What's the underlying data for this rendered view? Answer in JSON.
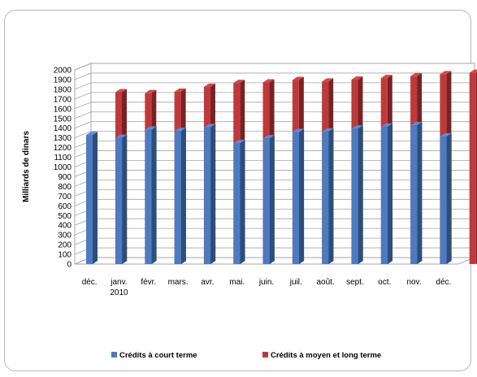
{
  "chart_data": {
    "type": "bar",
    "subtype": "3d-clustered",
    "categories": [
      "déc.",
      "janv.",
      "févr.",
      "mars.",
      "avr.",
      "mai.",
      "juin.",
      "juil.",
      "août.",
      "sept.",
      "oct.",
      "nov.",
      "déc."
    ],
    "category_sublabels": [
      "",
      "2010",
      "",
      "",
      "",
      "",
      "",
      "",
      "",
      "",
      "",
      "",
      ""
    ],
    "series": [
      {
        "name": "Crédits à court terme",
        "color": "#4a7cc3",
        "values": [
          1330,
          1300,
          1385,
          1370,
          1410,
          1245,
          1295,
          1360,
          1365,
          1395,
          1415,
          1430,
          1315
        ]
      },
      {
        "name": "Crédits à moyen et long terme",
        "color": "#c0393a",
        "values": [
          1770,
          1760,
          1775,
          1825,
          1865,
          1870,
          1895,
          1880,
          1900,
          1915,
          1935,
          1955,
          1970
        ]
      }
    ],
    "title": "",
    "xlabel": "",
    "ylabel": "Milliards de dinars",
    "ylim": [
      0,
      2000
    ],
    "ytick_step": 100,
    "grid": true,
    "legend_position": "bottom"
  }
}
